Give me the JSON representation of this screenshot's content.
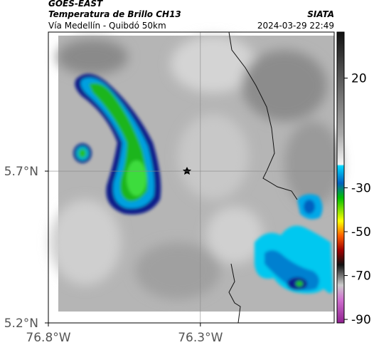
{
  "header": {
    "title": "GOES-EAST",
    "subtitle": "Temperatura de Brillo CH13",
    "region": "Vía Medellín - Quibdó 50km",
    "source": "SIATA",
    "timestamp": "2024-03-29 22:49"
  },
  "map": {
    "xlim": [
      -76.8,
      -75.86
    ],
    "ylim": [
      5.2,
      6.158
    ],
    "xticks": [
      {
        "value": -76.8,
        "label": "76.8°W"
      },
      {
        "value": -76.3,
        "label": "76.3°W"
      }
    ],
    "yticks": [
      {
        "value": 5.2,
        "label": "5.2°N"
      },
      {
        "value": 5.7,
        "label": "5.7°N"
      }
    ],
    "grid": true
  },
  "colorbar": {
    "lim": [
      -91.6,
      41
    ],
    "ticks": [
      20,
      -30,
      -50,
      -70,
      -90
    ]
  }
}
